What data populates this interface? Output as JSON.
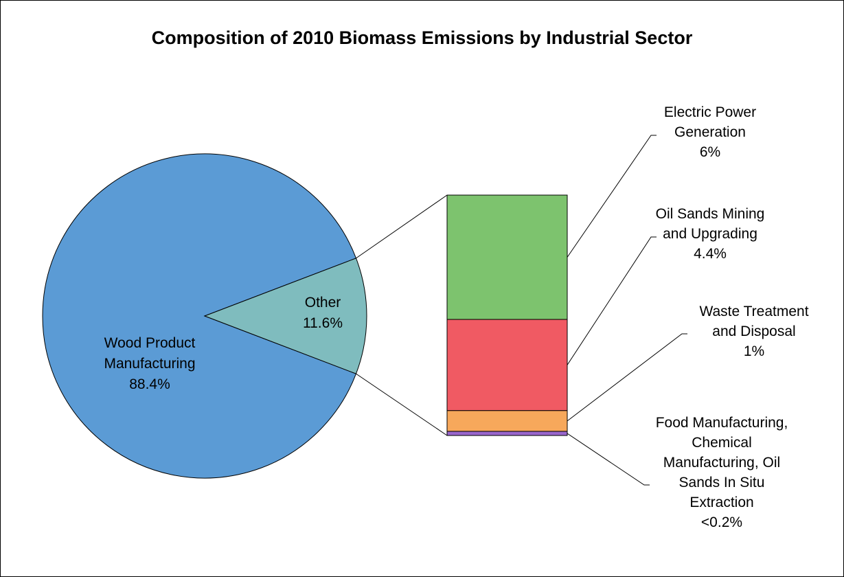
{
  "chart_data": [
    {
      "type": "pie",
      "title": "Composition of 2010 Biomass Emissions by Industrial Sector",
      "slices": [
        {
          "name": "Wood Product Manufacturing",
          "value": 88.4,
          "label": "88.4%",
          "color": "#5b9bd5"
        },
        {
          "name": "Other",
          "value": 11.6,
          "label": "11.6%",
          "color": "#7fbcbe"
        }
      ]
    },
    {
      "type": "bar",
      "stacked": true,
      "breakdown_of": "Other",
      "series": [
        {
          "name": "Electric Power Generation",
          "value": 6,
          "label": "6%",
          "color": "#7dc36e"
        },
        {
          "name": "Oil Sands Mining and Upgrading",
          "value": 4.4,
          "label": "4.4%",
          "color": "#f05a63"
        },
        {
          "name": "Waste Treatment and Disposal",
          "value": 1,
          "label": "1%",
          "color": "#f7a85b"
        },
        {
          "name": "Food Manufacturing, Chemical Manufacturing, Oil Sands In Situ Extraction",
          "value": 0.2,
          "label": "<0.2%",
          "color": "#9966cc"
        }
      ],
      "labels": {
        "s0": [
          "Electric Power",
          "Generation",
          "6%"
        ],
        "s1": [
          "Oil Sands Mining",
          "and Upgrading",
          "4.4%"
        ],
        "s2": [
          "Waste Treatment",
          "and Disposal",
          "1%"
        ],
        "s3": [
          "Food Manufacturing,",
          "Chemical",
          "Manufacturing, Oil",
          "Sands In Situ",
          "Extraction",
          "<0.2%"
        ]
      }
    }
  ]
}
